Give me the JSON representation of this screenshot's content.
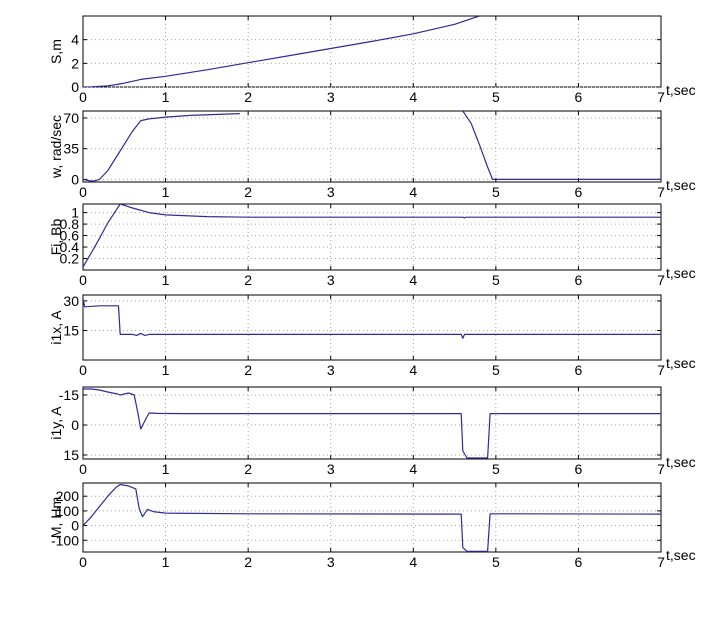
{
  "chart_data": [
    {
      "type": "line",
      "ylabel": "S,m",
      "xlabel": "t,sec",
      "xlim": [
        0,
        7
      ],
      "ylim": [
        0,
        6
      ],
      "xticks": [
        "0",
        "1",
        "2",
        "3",
        "4",
        "5",
        "6",
        "7"
      ],
      "yticks": [
        {
          "v": 0,
          "label": "0"
        },
        {
          "v": 2,
          "label": "2"
        },
        {
          "v": 4,
          "label": "4"
        }
      ],
      "grid": true,
      "series": [
        {
          "color": "#2c2c9a",
          "segments": [
            [
              [
                0,
                0
              ],
              [
                0.1,
                0.01
              ],
              [
                0.2,
                0.05
              ],
              [
                0.3,
                0.1
              ],
              [
                0.4,
                0.2
              ],
              [
                0.5,
                0.33
              ],
              [
                0.6,
                0.48
              ],
              [
                0.7,
                0.64
              ],
              [
                1.0,
                0.9
              ],
              [
                1.5,
                1.45
              ],
              [
                2.0,
                2.05
              ],
              [
                2.5,
                2.65
              ],
              [
                3.0,
                3.25
              ],
              [
                3.5,
                3.85
              ],
              [
                4.0,
                4.5
              ],
              [
                4.5,
                5.3
              ],
              [
                4.8,
                6.0
              ]
            ]
          ]
        }
      ]
    },
    {
      "type": "line",
      "ylabel": "w, rad/sec",
      "xlabel": "t,sec",
      "xlim": [
        0,
        7
      ],
      "ylim": [
        -3,
        78
      ],
      "xticks": [
        "0",
        "1",
        "2",
        "3",
        "4",
        "5",
        "6",
        "7"
      ],
      "yticks": [
        {
          "v": 0,
          "label": "0"
        },
        {
          "v": 35,
          "label": "35"
        },
        {
          "v": 70,
          "label": "70"
        }
      ],
      "grid": true,
      "series": [
        {
          "color": "#2c2c9a",
          "segments": [
            [
              [
                0,
                0
              ],
              [
                0.1,
                -2
              ],
              [
                0.15,
                -1.5
              ],
              [
                0.2,
                0
              ],
              [
                0.3,
                10
              ],
              [
                0.4,
                25
              ],
              [
                0.5,
                40
              ],
              [
                0.6,
                55
              ],
              [
                0.7,
                67
              ],
              [
                0.8,
                69
              ],
              [
                1.0,
                71
              ],
              [
                1.3,
                73
              ],
              [
                1.6,
                74
              ],
              [
                1.9,
                75
              ]
            ],
            [
              [
                4.6,
                78
              ],
              [
                4.7,
                64
              ],
              [
                4.8,
                40
              ],
              [
                4.9,
                14
              ],
              [
                4.96,
                0
              ],
              [
                7,
                0
              ]
            ]
          ]
        }
      ]
    },
    {
      "type": "line",
      "ylabel": "Fi, Bb",
      "xlabel": "t,sec",
      "xlim": [
        0,
        7
      ],
      "ylim": [
        0,
        1.15
      ],
      "xticks": [
        "0",
        "1",
        "2",
        "3",
        "4",
        "5",
        "6",
        "7"
      ],
      "yticks": [
        {
          "v": 0.2,
          "label": "0.2"
        },
        {
          "v": 0.4,
          "label": "0.4"
        },
        {
          "v": 0.6,
          "label": "0.6"
        },
        {
          "v": 0.8,
          "label": "0.8"
        },
        {
          "v": 1,
          "label": "1"
        }
      ],
      "grid": true,
      "series": [
        {
          "color": "#2c2c9a",
          "segments": [
            [
              [
                0,
                0.05
              ],
              [
                0.1,
                0.3
              ],
              [
                0.2,
                0.55
              ],
              [
                0.3,
                0.82
              ],
              [
                0.45,
                1.15
              ],
              [
                0.6,
                1.08
              ],
              [
                0.8,
                1.0
              ],
              [
                1.0,
                0.96
              ],
              [
                1.5,
                0.93
              ],
              [
                2.0,
                0.92
              ],
              [
                4.6,
                0.92
              ],
              [
                4.62,
                0.91
              ],
              [
                4.64,
                0.92
              ],
              [
                7,
                0.92
              ]
            ]
          ]
        }
      ]
    },
    {
      "type": "line",
      "ylabel": "i1x, A",
      "xlabel": "t,sec",
      "xlim": [
        0,
        7
      ],
      "ylim": [
        0,
        33
      ],
      "xticks": [
        "0",
        "1",
        "2",
        "3",
        "4",
        "5",
        "6",
        "7"
      ],
      "yticks": [
        {
          "v": 15,
          "label": "15"
        },
        {
          "v": 30,
          "label": "30"
        }
      ],
      "grid": true,
      "series": [
        {
          "color": "#2c2c9a",
          "segments": [
            [
              [
                0,
                31
              ],
              [
                0.02,
                27
              ],
              [
                0.2,
                27.5
              ],
              [
                0.43,
                27.5
              ],
              [
                0.45,
                13
              ],
              [
                0.6,
                13
              ],
              [
                0.65,
                12.5
              ],
              [
                0.7,
                13.5
              ],
              [
                0.75,
                12.5
              ],
              [
                0.8,
                13
              ],
              [
                4.58,
                13
              ],
              [
                4.6,
                11
              ],
              [
                4.62,
                13
              ],
              [
                7,
                13
              ]
            ]
          ]
        }
      ]
    },
    {
      "type": "line",
      "ylabel": "i1y, A",
      "xlabel": "t,sec",
      "xlim": [
        0,
        7
      ],
      "ylim": [
        17,
        -19
      ],
      "xticks": [
        "0",
        "1",
        "2",
        "3",
        "4",
        "5",
        "6",
        "7"
      ],
      "yticks": [
        {
          "v": -15,
          "label": "-15"
        },
        {
          "v": 0,
          "label": "0"
        },
        {
          "v": 15,
          "label": "15"
        }
      ],
      "grid": true,
      "series": [
        {
          "color": "#2c2c9a",
          "segments": [
            [
              [
                0,
                -18
              ],
              [
                0.1,
                -18
              ],
              [
                0.2,
                -17.5
              ],
              [
                0.3,
                -16.5
              ],
              [
                0.42,
                -15.5
              ],
              [
                0.45,
                -15
              ],
              [
                0.55,
                -16
              ],
              [
                0.62,
                -15
              ],
              [
                0.66,
                -7
              ],
              [
                0.7,
                2
              ],
              [
                0.76,
                -3
              ],
              [
                0.8,
                -6
              ],
              [
                0.9,
                -5.8
              ],
              [
                1.2,
                -5.7
              ],
              [
                4.58,
                -5.7
              ],
              [
                4.6,
                13
              ],
              [
                4.65,
                16.5
              ],
              [
                4.9,
                16.5
              ],
              [
                4.93,
                -5.7
              ],
              [
                7,
                -5.7
              ]
            ]
          ]
        }
      ]
    },
    {
      "type": "line",
      "ylabel": "M, Hm",
      "xlabel": "t,sec",
      "xlim": [
        0,
        7
      ],
      "ylim": [
        -180,
        290
      ],
      "xticks": [
        "0",
        "1",
        "2",
        "3",
        "4",
        "5",
        "6",
        "7"
      ],
      "yticks": [
        {
          "v": -100,
          "label": "-100"
        },
        {
          "v": 0,
          "label": "0"
        },
        {
          "v": 100,
          "label": "100"
        },
        {
          "v": 200,
          "label": "200"
        }
      ],
      "grid": true,
      "series": [
        {
          "color": "#2c2c9a",
          "segments": [
            [
              [
                0,
                0
              ],
              [
                0.1,
                60
              ],
              [
                0.2,
                130
              ],
              [
                0.3,
                200
              ],
              [
                0.4,
                260
              ],
              [
                0.45,
                280
              ],
              [
                0.55,
                270
              ],
              [
                0.64,
                250
              ],
              [
                0.68,
                120
              ],
              [
                0.72,
                60
              ],
              [
                0.78,
                110
              ],
              [
                0.85,
                95
              ],
              [
                1.0,
                85
              ],
              [
                2.0,
                80
              ],
              [
                4.58,
                78
              ],
              [
                4.6,
                -150
              ],
              [
                4.65,
                -175
              ],
              [
                4.9,
                -175
              ],
              [
                4.93,
                80
              ],
              [
                7,
                78
              ]
            ]
          ]
        }
      ]
    }
  ]
}
